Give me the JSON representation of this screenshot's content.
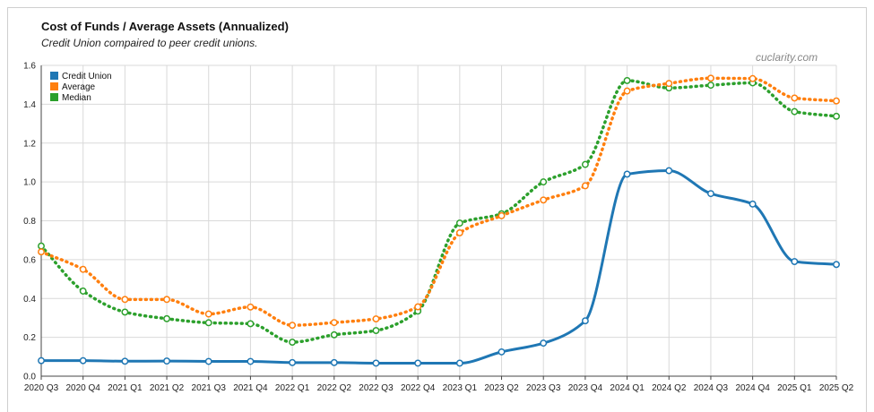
{
  "header": {
    "title": "Cost of Funds / Average Assets (Annualized)",
    "subtitle": "Credit Union compaired to peer credit unions.",
    "watermark": "cuclarity.com"
  },
  "chart_data": {
    "type": "line",
    "title": "Cost of Funds / Average Assets (Annualized)",
    "subtitle": "Credit Union compaired to peer credit unions.",
    "x": [
      "2020 Q3",
      "2020 Q4",
      "2021 Q1",
      "2021 Q2",
      "2021 Q3",
      "2021 Q4",
      "2022 Q1",
      "2022 Q2",
      "2022 Q3",
      "2022 Q4",
      "2023 Q1",
      "2023 Q2",
      "2023 Q3",
      "2023 Q4",
      "2024 Q1",
      "2024 Q2",
      "2024 Q3",
      "2024 Q4",
      "2025 Q1",
      "2025 Q2"
    ],
    "yticks": [
      "0.0",
      "0.2",
      "0.4",
      "0.6",
      "0.8",
      "1.0",
      "1.2",
      "1.4",
      "1.6"
    ],
    "ylim": [
      0,
      1.6
    ],
    "grid": true,
    "legend_position": "top-left",
    "series": [
      {
        "name": "Credit Union",
        "color": "#1f77b4",
        "style": "solid",
        "values": [
          0.08,
          0.08,
          0.077,
          0.078,
          0.076,
          0.076,
          0.07,
          0.07,
          0.067,
          0.067,
          0.067,
          0.125,
          0.17,
          0.285,
          1.04,
          1.058,
          0.94,
          0.886,
          0.59,
          0.575
        ]
      },
      {
        "name": "Average",
        "color": "#ff7f0e",
        "style": "dotted",
        "values": [
          0.64,
          0.55,
          0.395,
          0.395,
          0.32,
          0.356,
          0.262,
          0.276,
          0.295,
          0.357,
          0.738,
          0.826,
          0.907,
          0.98,
          1.468,
          1.507,
          1.534,
          1.532,
          1.432,
          1.417
        ]
      },
      {
        "name": "Median",
        "color": "#2ca02c",
        "style": "dotted",
        "values": [
          0.67,
          0.438,
          0.33,
          0.296,
          0.275,
          0.27,
          0.175,
          0.213,
          0.235,
          0.335,
          0.788,
          0.836,
          1.0,
          1.09,
          1.522,
          1.484,
          1.498,
          1.51,
          1.362,
          1.338
        ]
      }
    ]
  }
}
